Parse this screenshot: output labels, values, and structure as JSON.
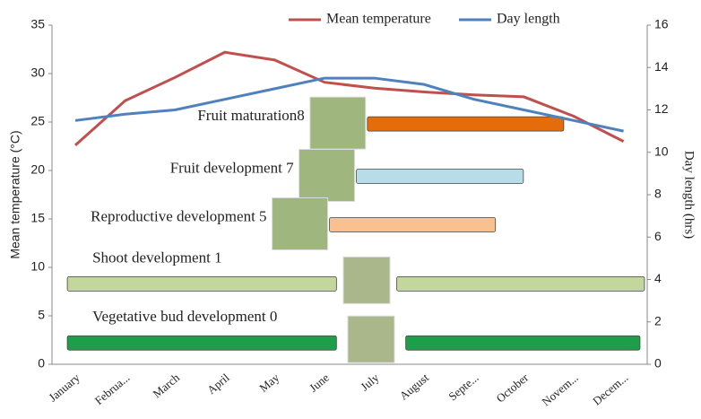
{
  "chart_data": {
    "type": "line",
    "categories": [
      "January",
      "Februa...",
      "March",
      "April",
      "May",
      "June",
      "July",
      "August",
      "Septe...",
      "October",
      "Novem...",
      "Decem..."
    ],
    "series": [
      {
        "name": "Mean temperature",
        "color": "#c0504d",
        "values": [
          22.6,
          27.2,
          29.6,
          32.2,
          31.4,
          29.1,
          28.5,
          28.1,
          27.8,
          27.6,
          25.6,
          23.0
        ]
      },
      {
        "name": "Day length",
        "color": "#4f81bd",
        "axis": "y2",
        "values": [
          11.5,
          11.8,
          12.0,
          12.5,
          13.0,
          13.5,
          13.5,
          13.2,
          12.5,
          12.0,
          11.5,
          11.0
        ]
      }
    ],
    "ylabel": "Mean temperature (°C)",
    "y2label": "Day length (hrs)",
    "ylim": [
      0,
      35
    ],
    "yticks": [
      0,
      5,
      10,
      15,
      20,
      25,
      30,
      35
    ],
    "y2lim": [
      0,
      16
    ],
    "y2ticks": [
      0,
      2,
      4,
      6,
      8,
      10,
      12,
      14,
      16
    ],
    "legend": "top",
    "phases": [
      {
        "label": "Fruit maturation8",
        "color": "#e46c0a",
        "level": 24.8,
        "spans": [
          [
            5.86,
            9.8
          ]
        ]
      },
      {
        "label": "Fruit development 7",
        "color": "#b7dee8",
        "level": 19.4,
        "spans": [
          [
            5.64,
            8.99
          ]
        ]
      },
      {
        "label": "Reproductive development 5",
        "color": "#fac090",
        "level": 14.4,
        "spans": [
          [
            5.1,
            8.43
          ]
        ]
      },
      {
        "label": "Shoot development 1",
        "color": "#c3d69b",
        "level": 8.3,
        "spans": [
          [
            -0.16,
            5.24
          ],
          [
            6.45,
            11.42
          ]
        ]
      },
      {
        "label": "Vegetative bud development 0",
        "color": "#1e9e4a",
        "level": 2.2,
        "spans": [
          [
            -0.16,
            5.24
          ],
          [
            6.63,
            11.33
          ]
        ]
      }
    ]
  }
}
